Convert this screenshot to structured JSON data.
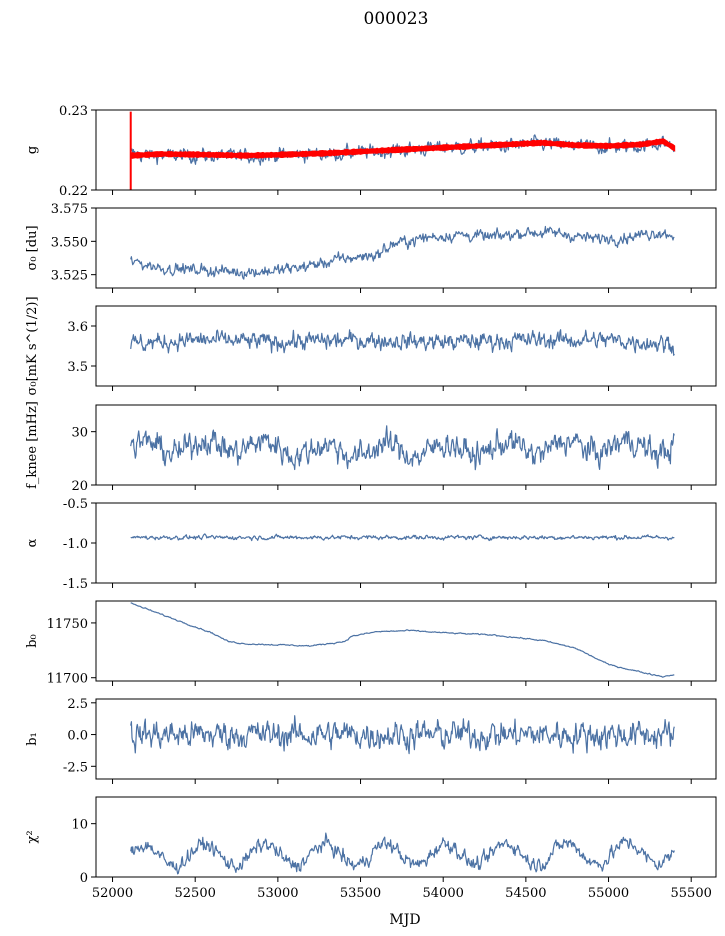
{
  "figure": {
    "title": "000023",
    "xlabel": "MJD",
    "series_color": "#4c72a4",
    "fit_color": "#ff0000",
    "x_ticks": [
      "52000",
      "52500",
      "53000",
      "53500",
      "54000",
      "54500",
      "55000",
      "55500"
    ]
  },
  "chart_data": [
    {
      "type": "line",
      "ylabel": "g",
      "xlim": [
        51900,
        55650
      ],
      "ylim": [
        0.22,
        0.23
      ],
      "yticks": [
        "0.22",
        "0.23"
      ],
      "x_range": [
        52110,
        55400
      ],
      "series": [
        {
          "style": "line-noisy",
          "mean_curve": [
            [
              52110,
              0.2245
            ],
            [
              52300,
              0.2243
            ],
            [
              52600,
              0.2243
            ],
            [
              52800,
              0.2242
            ],
            [
              53000,
              0.2244
            ],
            [
              53300,
              0.2245
            ],
            [
              53600,
              0.2248
            ],
            [
              54000,
              0.2253
            ],
            [
              54400,
              0.2255
            ],
            [
              54600,
              0.2258
            ],
            [
              54800,
              0.2255
            ],
            [
              55000,
              0.2254
            ],
            [
              55200,
              0.2255
            ],
            [
              55330,
              0.226
            ],
            [
              55400,
              0.2253
            ]
          ],
          "noise_amplitude": 0.0007
        },
        {
          "style": "red-band",
          "color": "#ff0000",
          "band_curve": [
            [
              52110,
              0.2243
            ],
            [
              52300,
              0.2245
            ],
            [
              52600,
              0.2244
            ],
            [
              52800,
              0.2243
            ],
            [
              53000,
              0.2244
            ],
            [
              53300,
              0.2246
            ],
            [
              53600,
              0.2249
            ],
            [
              54000,
              0.2253
            ],
            [
              54400,
              0.2257
            ],
            [
              54600,
              0.2259
            ],
            [
              54800,
              0.2256
            ],
            [
              55000,
              0.2255
            ],
            [
              55200,
              0.2257
            ],
            [
              55330,
              0.2261
            ],
            [
              55400,
              0.2252
            ]
          ],
          "band_half_width": 0.0003,
          "spike": {
            "x": 52110,
            "y_top": 0.2298,
            "y_bottom": 0.22
          }
        }
      ]
    },
    {
      "type": "line",
      "ylabel": "σ₀ [du]",
      "xlim": [
        51900,
        55650
      ],
      "ylim": [
        3.515,
        3.575
      ],
      "yticks": [
        "3.525",
        "3.550",
        "3.575"
      ],
      "x_range": [
        52110,
        55400
      ],
      "series": [
        {
          "style": "line-noisy",
          "mean_curve": [
            [
              52110,
              3.535
            ],
            [
              52300,
              3.53
            ],
            [
              52600,
              3.528
            ],
            [
              52800,
              3.527
            ],
            [
              53000,
              3.528
            ],
            [
              53200,
              3.532
            ],
            [
              53400,
              3.537
            ],
            [
              53600,
              3.54
            ],
            [
              53700,
              3.548
            ],
            [
              53900,
              3.553
            ],
            [
              54100,
              3.555
            ],
            [
              54300,
              3.553
            ],
            [
              54500,
              3.557
            ],
            [
              54700,
              3.556
            ],
            [
              54900,
              3.552
            ],
            [
              55100,
              3.553
            ],
            [
              55300,
              3.557
            ],
            [
              55400,
              3.555
            ]
          ],
          "noise_amplitude": 0.0035
        }
      ]
    },
    {
      "type": "line",
      "ylabel": "σ₀[mK s^(1/2)]",
      "xlim": [
        51900,
        55650
      ],
      "ylim": [
        3.45,
        3.65
      ],
      "yticks": [
        "3.5",
        "3.6"
      ],
      "x_range": [
        52110,
        55400
      ],
      "series": [
        {
          "style": "line-noisy",
          "mean_curve": [
            [
              52110,
              3.555
            ],
            [
              52500,
              3.565
            ],
            [
              53000,
              3.56
            ],
            [
              53500,
              3.565
            ],
            [
              54000,
              3.56
            ],
            [
              54500,
              3.565
            ],
            [
              55000,
              3.565
            ],
            [
              55400,
              3.555
            ]
          ],
          "noise_amplitude": 0.018
        }
      ]
    },
    {
      "type": "line",
      "ylabel": "f_knee [mHz]",
      "xlim": [
        51900,
        55650
      ],
      "ylim": [
        20,
        35
      ],
      "yticks": [
        "20",
        "30"
      ],
      "x_range": [
        52110,
        55400
      ],
      "series": [
        {
          "style": "line-noisy",
          "mean_curve": [
            [
              52110,
              26.8
            ],
            [
              52700,
              27.5
            ],
            [
              53200,
              26.5
            ],
            [
              53800,
              26.5
            ],
            [
              54300,
              26.8
            ],
            [
              54900,
              27.2
            ],
            [
              55400,
              27.2
            ]
          ],
          "noise_amplitude": 2.0,
          "seasonal_amplitude": 1.2
        }
      ]
    },
    {
      "type": "line",
      "ylabel": "α",
      "xlim": [
        51900,
        55650
      ],
      "ylim": [
        -1.5,
        -0.5
      ],
      "yticks": [
        "-1.5",
        "-1.0",
        "-0.5"
      ],
      "x_range": [
        52110,
        55400
      ],
      "series": [
        {
          "style": "line-noisy",
          "mean_curve": [
            [
              52110,
              -0.93
            ],
            [
              55400,
              -0.93
            ]
          ],
          "noise_amplitude": 0.022
        }
      ]
    },
    {
      "type": "line",
      "ylabel": "b₀",
      "xlim": [
        51900,
        55650
      ],
      "ylim": [
        11697,
        11770
      ],
      "yticks": [
        "11700",
        "11750"
      ],
      "x_range": [
        52110,
        55400
      ],
      "series": [
        {
          "style": "line-smooth",
          "mean_curve": [
            [
              52110,
              11768
            ],
            [
              52200,
              11763
            ],
            [
              52400,
              11752
            ],
            [
              52600,
              11741
            ],
            [
              52700,
              11733
            ],
            [
              52800,
              11731
            ],
            [
              53000,
              11730
            ],
            [
              53200,
              11729
            ],
            [
              53400,
              11733
            ],
            [
              53450,
              11738
            ],
            [
              53600,
              11742
            ],
            [
              53800,
              11743
            ],
            [
              54000,
              11741
            ],
            [
              54300,
              11739
            ],
            [
              54600,
              11734
            ],
            [
              54800,
              11727
            ],
            [
              55000,
              11712
            ],
            [
              55200,
              11705
            ],
            [
              55330,
              11701
            ],
            [
              55400,
              11703
            ]
          ],
          "noise_amplitude": 0.5
        }
      ]
    },
    {
      "type": "line",
      "ylabel": "b₁",
      "xlim": [
        51900,
        55650
      ],
      "ylim": [
        -3.5,
        2.8
      ],
      "yticks": [
        "-2.5",
        "0.0",
        "2.5"
      ],
      "x_range": [
        52110,
        55400
      ],
      "series": [
        {
          "style": "line-noisy",
          "mean_curve": [
            [
              52110,
              0.0
            ],
            [
              55400,
              0.0
            ]
          ],
          "noise_amplitude": 0.9
        }
      ]
    },
    {
      "type": "line",
      "ylabel": "χ²",
      "xlim": [
        51900,
        55650
      ],
      "ylim": [
        0,
        15
      ],
      "yticks": [
        "0",
        "10"
      ],
      "x_range": [
        52110,
        55400
      ],
      "series": [
        {
          "style": "line-noisy",
          "mean_curve": [
            [
              52110,
              4.0
            ],
            [
              55400,
              4.5
            ]
          ],
          "noise_amplitude": 1.1,
          "seasonal_amplitude": 2.0
        }
      ]
    }
  ]
}
